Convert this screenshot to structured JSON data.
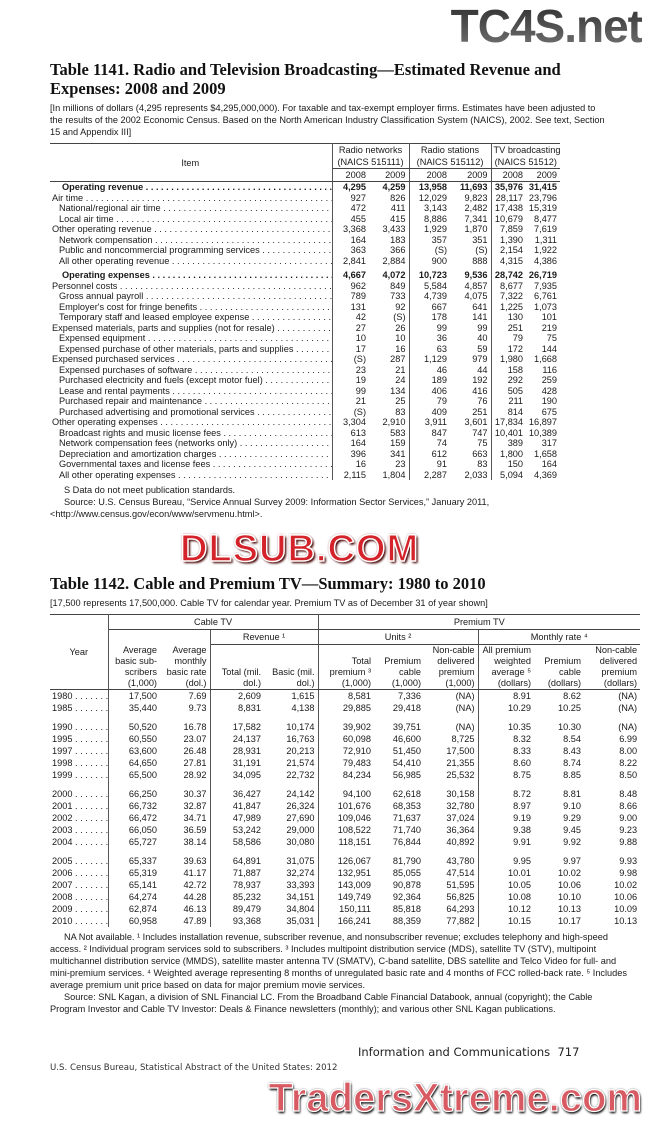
{
  "watermarks": {
    "top": "TC4S.net",
    "middle": "DLSUB.COM",
    "bottom": "TradersXtreme.com"
  },
  "table1141": {
    "title": "Table 1141. Radio and Television Broadcasting—Estimated Revenue and Expenses: 2008 and 2009",
    "headnote": "[In millions of dollars (4,295 represents $4,295,000,000). For taxable and tax-exempt employer firms. Estimates have been adjusted to the results of the 2002 Economic Census. Based on the North American Industry Classification System (NAICS), 2002. See text, Section 15 and Appendix III]",
    "item_header": "Item",
    "groups": [
      {
        "label": "Radio networks",
        "naics": "(NAICS 515111)"
      },
      {
        "label": "Radio stations",
        "naics": "(NAICS 515112)"
      },
      {
        "label": "TV broadcasting",
        "naics": "(NAICS 51512)"
      }
    ],
    "years": [
      "2008",
      "2009",
      "2008",
      "2009",
      "2008",
      "2009"
    ],
    "rows": [
      {
        "label": "Operating revenue",
        "type": "total",
        "values": [
          "4,295",
          "4,259",
          "13,958",
          "11,693",
          "35,976",
          "31,415"
        ]
      },
      {
        "label": "Air time",
        "level": 0,
        "values": [
          "927",
          "826",
          "12,029",
          "9,823",
          "28,117",
          "23,796"
        ]
      },
      {
        "label": "National/regional air time",
        "level": 1,
        "values": [
          "472",
          "411",
          "3,143",
          "2,482",
          "17,438",
          "15,319"
        ]
      },
      {
        "label": "Local air time",
        "level": 1,
        "values": [
          "455",
          "415",
          "8,886",
          "7,341",
          "10,679",
          "8,477"
        ]
      },
      {
        "label": "Other operating revenue",
        "level": 0,
        "values": [
          "3,368",
          "3,433",
          "1,929",
          "1,870",
          "7,859",
          "7,619"
        ]
      },
      {
        "label": "Network compensation",
        "level": 1,
        "values": [
          "164",
          "183",
          "357",
          "351",
          "1,390",
          "1,311"
        ]
      },
      {
        "label": "Public and noncommercial programming services",
        "level": 1,
        "values": [
          "363",
          "366",
          "(S)",
          "(S)",
          "2,154",
          "1,922"
        ]
      },
      {
        "label": "All other operating revenue",
        "level": 1,
        "values": [
          "2,841",
          "2,884",
          "900",
          "888",
          "4,315",
          "4,386"
        ]
      },
      {
        "label": "Operating expenses",
        "type": "total",
        "gap": true,
        "values": [
          "4,667",
          "4,072",
          "10,723",
          "9,536",
          "28,742",
          "26,719"
        ]
      },
      {
        "label": "Personnel costs",
        "level": 0,
        "values": [
          "962",
          "849",
          "5,584",
          "4,857",
          "8,677",
          "7,935"
        ]
      },
      {
        "label": "Gross annual payroll",
        "level": 1,
        "values": [
          "789",
          "733",
          "4,739",
          "4,075",
          "7,322",
          "6,761"
        ]
      },
      {
        "label": "Employer's cost for fringe benefits",
        "level": 1,
        "values": [
          "131",
          "92",
          "667",
          "641",
          "1,225",
          "1,073"
        ]
      },
      {
        "label": "Temporary staff and leased employee expense",
        "level": 1,
        "values": [
          "42",
          "(S)",
          "178",
          "141",
          "130",
          "101"
        ]
      },
      {
        "label": "Expensed materials, parts and supplies (not for resale)",
        "level": 0,
        "values": [
          "27",
          "26",
          "99",
          "99",
          "251",
          "219"
        ]
      },
      {
        "label": "Expensed equipment",
        "level": 1,
        "values": [
          "10",
          "10",
          "36",
          "40",
          "79",
          "75"
        ]
      },
      {
        "label": "Expensed purchase of other materials, parts and supplies",
        "level": 1,
        "values": [
          "17",
          "16",
          "63",
          "59",
          "172",
          "144"
        ]
      },
      {
        "label": "Expensed purchased services",
        "level": 0,
        "values": [
          "(S)",
          "287",
          "1,129",
          "979",
          "1,980",
          "1,668"
        ]
      },
      {
        "label": "Expensed purchases of software",
        "level": 1,
        "values": [
          "23",
          "21",
          "46",
          "44",
          "158",
          "116"
        ]
      },
      {
        "label": "Purchased electricity and fuels (except motor fuel)",
        "level": 1,
        "values": [
          "19",
          "24",
          "189",
          "192",
          "292",
          "259"
        ]
      },
      {
        "label": "Lease and rental payments",
        "level": 1,
        "values": [
          "99",
          "134",
          "406",
          "416",
          "505",
          "428"
        ]
      },
      {
        "label": "Purchased repair and maintenance",
        "level": 1,
        "values": [
          "21",
          "25",
          "79",
          "76",
          "211",
          "190"
        ]
      },
      {
        "label": "Purchased advertising and promotional services",
        "level": 1,
        "values": [
          "(S)",
          "83",
          "409",
          "251",
          "814",
          "675"
        ]
      },
      {
        "label": "Other operating expenses",
        "level": 0,
        "values": [
          "3,304",
          "2,910",
          "3,911",
          "3,601",
          "17,834",
          "16,897"
        ]
      },
      {
        "label": "Broadcast rights and music license fees",
        "level": 1,
        "values": [
          "613",
          "583",
          "847",
          "747",
          "10,401",
          "10,389"
        ]
      },
      {
        "label": "Network compensation fees (networks only)",
        "level": 1,
        "values": [
          "164",
          "159",
          "74",
          "75",
          "389",
          "317"
        ]
      },
      {
        "label": "Depreciation and amortization charges",
        "level": 1,
        "values": [
          "396",
          "341",
          "612",
          "663",
          "1,800",
          "1,658"
        ]
      },
      {
        "label": "Governmental taxes and license fees",
        "level": 1,
        "values": [
          "16",
          "23",
          "91",
          "83",
          "150",
          "164"
        ]
      },
      {
        "label": "All other operating expenses",
        "level": 1,
        "values": [
          "2,115",
          "1,804",
          "2,287",
          "2,033",
          "5,094",
          "4,369"
        ]
      }
    ],
    "footnote_s": "S Data do not meet publication standards.",
    "source": "Source: U.S. Census Bureau, “Service Annual Survey 2009: Information Sector Services,” January 2011, <http://www.census.gov/econ/www/servmenu.html>."
  },
  "table1142": {
    "title": "Table 1142. Cable and Premium TV—Summary: 1980 to 2010",
    "headnote": "[17,500 represents 17,500,000. Cable TV for calendar year. Premium TV as of December 31 of year shown]",
    "year_header": "Year",
    "cable_tv": "Cable TV",
    "premium_tv": "Premium TV",
    "revenue": "Revenue ¹",
    "units": "Units ²",
    "monthly_rate": "Monthly rate ⁴",
    "columns": [
      "Average basic sub-scribers (1,000)",
      "Average monthly basic rate (dol.)",
      "Total (mil. dol.)",
      "Basic (mil. dol.)",
      "Total premium ³ (1,000)",
      "Premium cable (1,000)",
      "Non-cable delivered premium (1,000)",
      "All premium weighted average ⁵ (dollars)",
      "Premium cable (dollars)",
      "Non-cable delivered premium (dollars)"
    ],
    "rows": [
      {
        "year": "1980",
        "values": [
          "17,500",
          "7.69",
          "2,609",
          "1,615",
          "8,581",
          "7,336",
          "(NA)",
          "8.91",
          "8.62",
          "(NA)"
        ]
      },
      {
        "year": "1985",
        "values": [
          "35,440",
          "9.73",
          "8,831",
          "4,138",
          "29,885",
          "29,418",
          "(NA)",
          "10.29",
          "10.25",
          "(NA)"
        ]
      },
      {
        "year": "1990",
        "gap": true,
        "values": [
          "50,520",
          "16.78",
          "17,582",
          "10,174",
          "39,902",
          "39,751",
          "(NA)",
          "10.35",
          "10.30",
          "(NA)"
        ]
      },
      {
        "year": "1995",
        "values": [
          "60,550",
          "23.07",
          "24,137",
          "16,763",
          "60,098",
          "46,600",
          "8,725",
          "8.32",
          "8.54",
          "6.99"
        ]
      },
      {
        "year": "1997",
        "values": [
          "63,600",
          "26.48",
          "28,931",
          "20,213",
          "72,910",
          "51,450",
          "17,500",
          "8.33",
          "8.43",
          "8.00"
        ]
      },
      {
        "year": "1998",
        "values": [
          "64,650",
          "27.81",
          "31,191",
          "21,574",
          "79,483",
          "54,410",
          "21,355",
          "8.60",
          "8.74",
          "8.22"
        ]
      },
      {
        "year": "1999",
        "values": [
          "65,500",
          "28.92",
          "34,095",
          "22,732",
          "84,234",
          "56,985",
          "25,532",
          "8.75",
          "8.85",
          "8.50"
        ]
      },
      {
        "year": "2000",
        "gap": true,
        "values": [
          "66,250",
          "30.37",
          "36,427",
          "24,142",
          "94,100",
          "62,618",
          "30,158",
          "8.72",
          "8.81",
          "8.48"
        ]
      },
      {
        "year": "2001",
        "values": [
          "66,732",
          "32.87",
          "41,847",
          "26,324",
          "101,676",
          "68,353",
          "32,780",
          "8.97",
          "9.10",
          "8.66"
        ]
      },
      {
        "year": "2002",
        "values": [
          "66,472",
          "34.71",
          "47,989",
          "27,690",
          "109,046",
          "71,637",
          "37,024",
          "9.19",
          "9.29",
          "9.00"
        ]
      },
      {
        "year": "2003",
        "values": [
          "66,050",
          "36.59",
          "53,242",
          "29,000",
          "108,522",
          "71,740",
          "36,364",
          "9.38",
          "9.45",
          "9.23"
        ]
      },
      {
        "year": "2004",
        "values": [
          "65,727",
          "38.14",
          "58,586",
          "30,080",
          "118,151",
          "76,844",
          "40,892",
          "9.91",
          "9.92",
          "9.88"
        ]
      },
      {
        "year": "2005",
        "gap": true,
        "values": [
          "65,337",
          "39.63",
          "64,891",
          "31,075",
          "126,067",
          "81,790",
          "43,780",
          "9.95",
          "9.97",
          "9.93"
        ]
      },
      {
        "year": "2006",
        "values": [
          "65,319",
          "41.17",
          "71,887",
          "32,274",
          "132,951",
          "85,055",
          "47,514",
          "10.01",
          "10.02",
          "9.98"
        ]
      },
      {
        "year": "2007",
        "values": [
          "65,141",
          "42.72",
          "78,937",
          "33,393",
          "143,009",
          "90,878",
          "51,595",
          "10.05",
          "10.06",
          "10.02"
        ]
      },
      {
        "year": "2008",
        "values": [
          "64,274",
          "44.28",
          "85,232",
          "34,151",
          "149,749",
          "92,364",
          "56,825",
          "10.08",
          "10.10",
          "10.06"
        ]
      },
      {
        "year": "2009",
        "values": [
          "62,874",
          "46.13",
          "89,479",
          "34,804",
          "150,111",
          "85,818",
          "64,293",
          "10.12",
          "10.13",
          "10.09"
        ]
      },
      {
        "year": "2010",
        "values": [
          "60,958",
          "47.89",
          "93,368",
          "35,031",
          "166,241",
          "88,359",
          "77,882",
          "10.15",
          "10.17",
          "10.13"
        ]
      }
    ],
    "footnotes": "NA Not available. ¹ Includes installation revenue, subscriber revenue, and nonsubscriber revenue; excludes telephony and high-speed access. ² Individual program services sold to subscribers. ³ Includes multipoint distribution service (MDS), satellite TV (STV), multipoint multichannel distribution service (MMDS), satellite master antenna TV (SMATV), C-band satellite, DBS satellite and Telco Video for full- and mini-premium services. ⁴ Weighted average representing 8 months of unregulated basic rate and 4 months of FCC rolled-back rate. ⁵ Includes average premium unit price based on data for major premium movie services.",
    "source": "Source: SNL Kagan, a division of SNL Financial LC. From the Broadband Cable Financial Databook, annual (copyright); the Cable Program Investor and Cable TV Investor: Deals & Finance newsletters (monthly); and various other SNL Kagan publications."
  },
  "footer": {
    "section": "Information and Communications",
    "page": "717",
    "publication": "U.S. Census Bureau, Statistical Abstract of the United States: 2012"
  }
}
